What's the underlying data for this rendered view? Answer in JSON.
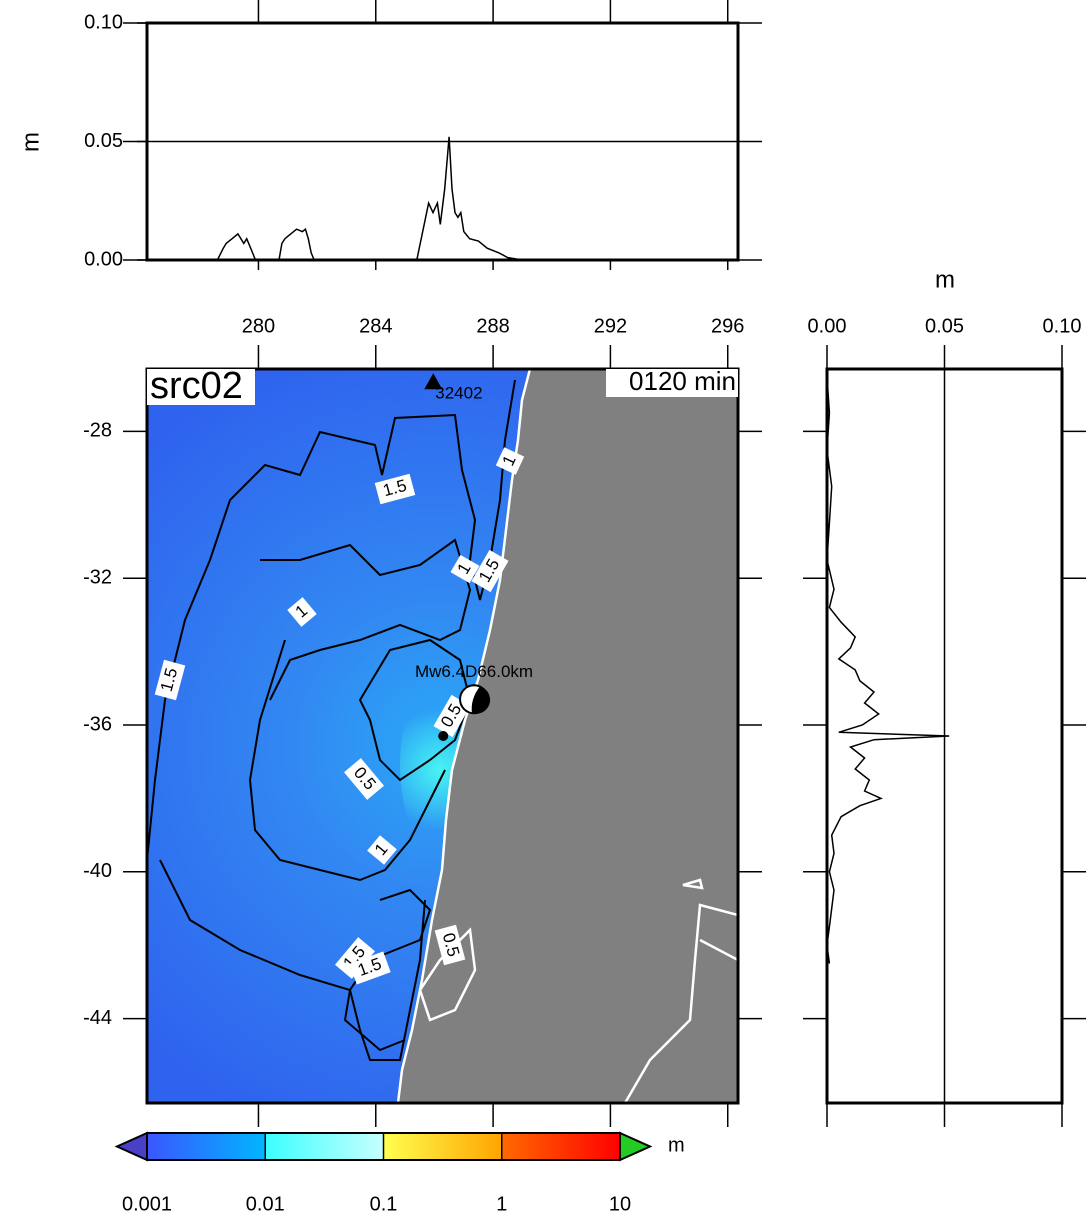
{
  "title": "src02",
  "time_label": "0120 min",
  "chart_data": [
    {
      "type": "line",
      "orientation": "x",
      "y_label": "m",
      "color": "#000000",
      "grid": true,
      "x": [
        276.2,
        278.6,
        278.8,
        278.9,
        279.1,
        279.3,
        279.5,
        279.6,
        279.7,
        279.8,
        279.9,
        280.7,
        280.8,
        280.9,
        281.1,
        281.3,
        281.5,
        281.6,
        281.7,
        281.8,
        281.9,
        285.4,
        285.6,
        285.8,
        285.95,
        286.1,
        286.2,
        286.35,
        286.5,
        286.6,
        286.7,
        286.8,
        286.9,
        287.0,
        287.2,
        287.5,
        287.8,
        288.2,
        288.5,
        289.0,
        296.2
      ],
      "values": [
        0,
        0,
        0.005,
        0.007,
        0.009,
        0.011,
        0.007,
        0.009,
        0.006,
        0.003,
        0,
        0,
        0.007,
        0.009,
        0.011,
        0.013,
        0.012,
        0.013,
        0.009,
        0.003,
        0,
        0,
        0.012,
        0.024,
        0.02,
        0.024,
        0.015,
        0.03,
        0.052,
        0.03,
        0.02,
        0.018,
        0.02,
        0.012,
        0.009,
        0.008,
        0.005,
        0.003,
        0.001,
        0,
        0
      ],
      "xlim": [
        276.2,
        296.35
      ],
      "ylim": [
        0,
        0.1
      ],
      "yticks": [
        {
          "value": 0,
          "label": "0.00"
        },
        {
          "value": 0.05,
          "label": "0.05"
        },
        {
          "value": 0.1,
          "label": "0.10"
        }
      ]
    },
    {
      "type": "map",
      "xlim": [
        276.2,
        296.35
      ],
      "ylim": [
        -46.3,
        -26.3
      ],
      "xticks": [
        280,
        284,
        288,
        292,
        296
      ],
      "yticks": [
        -28,
        -32,
        -36,
        -40,
        -44
      ],
      "station": {
        "name": "32402",
        "lon": 285.96,
        "lat": -26.66
      },
      "epicenter": {
        "lon": 286.3,
        "lat": -36.3
      },
      "mechanism": {
        "label": "Mw6.4D66.0km",
        "lon": 287.35,
        "lat": -35.3
      },
      "contour_labels": [
        "1.5",
        "1",
        "1",
        "1.5",
        "1",
        "1.5",
        "0.5",
        "0.5",
        "1",
        "1.5",
        "1.5",
        "0.5"
      ]
    },
    {
      "type": "line",
      "orientation": "y",
      "x_label": "m",
      "color": "#000000",
      "grid": true,
      "y": [
        -26.5,
        -27.5,
        -28.5,
        -29.5,
        -30.5,
        -31.5,
        -32.3,
        -32.8,
        -33.2,
        -33.6,
        -33.9,
        -34.2,
        -34.5,
        -34.8,
        -35.1,
        -35.4,
        -35.7,
        -36.0,
        -36.2,
        -36.3,
        -36.4,
        -36.6,
        -36.9,
        -37.2,
        -37.5,
        -37.8,
        -38.0,
        -38.2,
        -38.5,
        -39.0,
        -39.5,
        -40.0,
        -40.5,
        -41.0,
        -41.5,
        -42.0,
        -42.5
      ],
      "values": [
        0.0,
        0.001,
        0.0,
        0.002,
        0.001,
        0.0,
        0.003,
        0.001,
        0.006,
        0.012,
        0.01,
        0.005,
        0.012,
        0.014,
        0.02,
        0.016,
        0.022,
        0.015,
        0.005,
        0.052,
        0.02,
        0.01,
        0.016,
        0.012,
        0.018,
        0.016,
        0.023,
        0.014,
        0.006,
        0.002,
        0.003,
        0.001,
        0.003,
        0.002,
        0.001,
        0.0,
        0.001
      ],
      "xlim": [
        0,
        0.1
      ],
      "ylim": [
        -46.3,
        -26.3
      ],
      "xticks": [
        {
          "value": 0,
          "label": "0.00"
        },
        {
          "value": 0.05,
          "label": "0.05"
        },
        {
          "value": 0.1,
          "label": "0.10"
        }
      ]
    },
    {
      "type": "colorbar",
      "unit": "m",
      "log": true,
      "ticks": [
        0.001,
        0.01,
        0.1,
        1,
        10
      ],
      "colors": [
        [
          "#3a56ff",
          "#00b6ff"
        ],
        [
          "#3cffff",
          "#c8ffff"
        ],
        [
          "#ffff50",
          "#ffa400"
        ],
        [
          "#ff6a00",
          "#ff0000"
        ]
      ],
      "under_color": "#4a40c8",
      "over_color": "#22cc22"
    }
  ]
}
